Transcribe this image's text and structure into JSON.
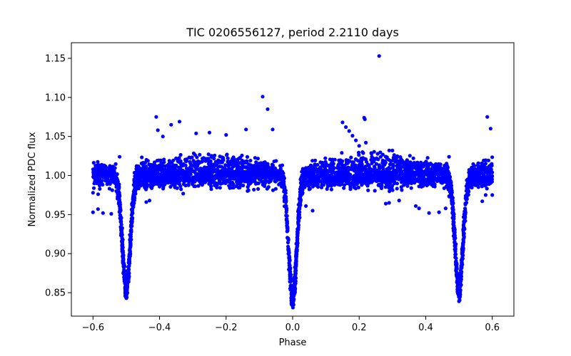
{
  "chart_data": {
    "type": "scatter",
    "title": "TIC 0206556127, period 2.2110 days",
    "xlabel": "Phase",
    "ylabel": "Normalized PDC flux",
    "xlim": [
      -0.665,
      0.665
    ],
    "ylim": [
      0.82,
      1.17
    ],
    "xticks": [
      -0.6,
      -0.4,
      -0.2,
      0.0,
      0.2,
      0.4,
      0.6
    ],
    "xtick_labels": [
      "−0.6",
      "−0.4",
      "−0.2",
      "0.0",
      "0.2",
      "0.4",
      "0.6"
    ],
    "yticks": [
      0.85,
      0.9,
      0.95,
      1.0,
      1.05,
      1.1,
      1.15
    ],
    "ytick_labels": [
      "0.85",
      "0.90",
      "0.95",
      "1.00",
      "1.05",
      "1.10",
      "1.15"
    ],
    "marker_color": "#0000ff",
    "phase_range": [
      -0.6,
      0.6
    ],
    "period_days": 2.211,
    "model": {
      "baseline": 1.0,
      "baseline_scatter": 0.008,
      "upper_track": {
        "amplitude": 0.02,
        "scatter": 0.005
      },
      "lower_track": {
        "start": 0.988,
        "slope": 0.018,
        "scatter": 0.003
      },
      "eclipses": [
        {
          "center": -0.5,
          "depth": 0.145,
          "width": 0.012
        },
        {
          "center": 0.0,
          "depth": 0.158,
          "width": 0.012
        },
        {
          "center": 0.5,
          "depth": 0.145,
          "width": 0.012
        }
      ]
    },
    "outliers": [
      {
        "x": 0.26,
        "y": 1.153
      },
      {
        "x": -0.09,
        "y": 1.101
      },
      {
        "x": -0.075,
        "y": 1.085
      },
      {
        "x": -0.41,
        "y": 1.075
      },
      {
        "x": 0.215,
        "y": 1.074
      },
      {
        "x": 0.217,
        "y": 1.072
      },
      {
        "x": 0.585,
        "y": 1.075
      },
      {
        "x": -0.365,
        "y": 1.065
      },
      {
        "x": -0.34,
        "y": 1.069
      },
      {
        "x": -0.14,
        "y": 1.059
      },
      {
        "x": -0.06,
        "y": 1.059
      },
      {
        "x": 0.595,
        "y": 1.06
      },
      {
        "x": 0.602,
        "y": 1.054
      },
      {
        "x": -0.405,
        "y": 1.058
      },
      {
        "x": -0.39,
        "y": 1.05
      },
      {
        "x": -0.29,
        "y": 1.054
      },
      {
        "x": -0.25,
        "y": 1.055
      },
      {
        "x": -0.2,
        "y": 1.052
      },
      {
        "x": 0.15,
        "y": 1.068
      },
      {
        "x": 0.16,
        "y": 1.062
      },
      {
        "x": 0.17,
        "y": 1.057
      },
      {
        "x": 0.18,
        "y": 1.051
      },
      {
        "x": 0.19,
        "y": 1.045
      },
      {
        "x": 0.2,
        "y": 1.038
      },
      {
        "x": 0.21,
        "y": 1.03
      },
      {
        "x": 0.22,
        "y": 1.042
      },
      {
        "x": 0.3,
        "y": 1.032
      },
      {
        "x": 0.47,
        "y": 1.024
      },
      {
        "x": -0.52,
        "y": 1.024
      },
      {
        "x": -0.6,
        "y": 0.953
      },
      {
        "x": -0.585,
        "y": 0.957
      },
      {
        "x": -0.57,
        "y": 0.952
      },
      {
        "x": -0.545,
        "y": 0.951
      },
      {
        "x": -0.43,
        "y": 0.968
      },
      {
        "x": -0.44,
        "y": 0.966
      },
      {
        "x": -0.6,
        "y": 0.978
      },
      {
        "x": 0.04,
        "y": 0.961
      },
      {
        "x": 0.06,
        "y": 0.955
      },
      {
        "x": 0.28,
        "y": 0.964
      },
      {
        "x": 0.29,
        "y": 0.965
      },
      {
        "x": 0.32,
        "y": 0.968
      },
      {
        "x": 0.37,
        "y": 0.961
      },
      {
        "x": 0.38,
        "y": 0.958
      },
      {
        "x": 0.41,
        "y": 0.952
      },
      {
        "x": 0.44,
        "y": 0.953
      },
      {
        "x": 0.46,
        "y": 0.958
      },
      {
        "x": 0.57,
        "y": 0.967
      },
      {
        "x": 0.58,
        "y": 0.975
      },
      {
        "x": 0.6,
        "y": 0.975
      }
    ]
  }
}
